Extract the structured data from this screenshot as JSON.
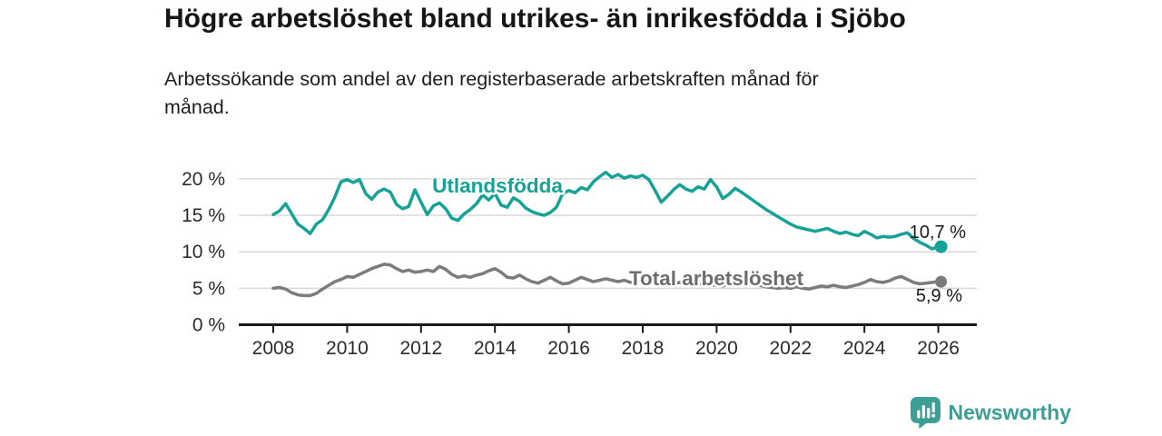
{
  "title": "Högre arbetslöshet bland utrikes- än inrikesfödda i Sjöbo",
  "subtitle": "Arbetssökande som andel av den registerbaserade arbetskraften månad för månad.",
  "chart_data": {
    "type": "line",
    "x_start_year": 2008,
    "x_step_months": 2,
    "x_end_year": 2026,
    "xticks": [
      2008,
      2010,
      2012,
      2014,
      2016,
      2018,
      2020,
      2022,
      2024,
      2026
    ],
    "yticks": [
      0,
      5,
      10,
      15,
      20
    ],
    "ytick_labels": [
      "0 %",
      "5 %",
      "10 %",
      "15 %",
      "20 %"
    ],
    "ylim": [
      0,
      22.5
    ],
    "grid": "horizontal",
    "legend": "inline-labels",
    "series": [
      {
        "name": "Utlandsfödda",
        "color": "#16a296",
        "end_label": "10,7 %",
        "end_value": 10.7,
        "values": [
          15.1,
          15.6,
          16.6,
          15.2,
          13.8,
          13.2,
          12.5,
          13.8,
          14.4,
          15.8,
          17.5,
          19.6,
          19.9,
          19.5,
          19.9,
          18.0,
          17.2,
          18.2,
          18.6,
          18.2,
          16.5,
          15.9,
          16.2,
          18.5,
          16.8,
          15.1,
          16.3,
          16.7,
          15.9,
          14.6,
          14.3,
          15.2,
          15.8,
          16.6,
          17.8,
          17.1,
          18.0,
          16.4,
          16.1,
          17.4,
          16.9,
          16.0,
          15.5,
          15.2,
          15.0,
          15.4,
          16.1,
          18.0,
          18.4,
          18.1,
          18.8,
          18.5,
          19.6,
          20.3,
          20.9,
          20.2,
          20.6,
          20.1,
          20.4,
          20.2,
          20.5,
          19.9,
          18.4,
          16.8,
          17.6,
          18.5,
          19.2,
          18.6,
          18.3,
          18.9,
          18.6,
          19.9,
          18.9,
          17.3,
          17.9,
          18.7,
          18.2,
          17.6,
          17.0,
          16.4,
          15.8,
          15.3,
          14.8,
          14.3,
          13.8,
          13.4,
          13.2,
          13.0,
          12.8,
          13.0,
          13.2,
          12.8,
          12.5,
          12.7,
          12.4,
          12.2,
          12.8,
          12.4,
          11.9,
          12.1,
          12.0,
          12.1,
          12.4,
          12.6,
          11.8,
          11.3,
          10.9,
          10.4,
          10.7
        ]
      },
      {
        "name": "Total arbetslöshet",
        "color": "#7c7c7c",
        "end_label": "5,9 %",
        "end_value": 5.9,
        "values": [
          5.0,
          5.1,
          4.9,
          4.4,
          4.1,
          4.0,
          4.0,
          4.3,
          4.9,
          5.4,
          5.9,
          6.2,
          6.6,
          6.5,
          6.9,
          7.3,
          7.7,
          8.0,
          8.3,
          8.2,
          7.7,
          7.3,
          7.5,
          7.2,
          7.3,
          7.5,
          7.3,
          8.0,
          7.6,
          6.9,
          6.5,
          6.7,
          6.5,
          6.8,
          7.0,
          7.4,
          7.7,
          7.2,
          6.5,
          6.4,
          6.8,
          6.3,
          5.9,
          5.7,
          6.1,
          6.5,
          6.0,
          5.6,
          5.7,
          6.1,
          6.5,
          6.2,
          5.9,
          6.1,
          6.3,
          6.1,
          5.9,
          6.1,
          5.8,
          6.0,
          6.1,
          5.9,
          5.6,
          5.5,
          5.7,
          5.6,
          5.8,
          5.6,
          5.4,
          5.6,
          5.4,
          5.5,
          5.4,
          5.3,
          5.6,
          5.9,
          5.7,
          5.5,
          5.6,
          5.4,
          5.2,
          5.1,
          5.0,
          5.1,
          5.0,
          5.2,
          5.0,
          4.9,
          5.1,
          5.3,
          5.2,
          5.4,
          5.2,
          5.1,
          5.3,
          5.5,
          5.8,
          6.2,
          5.9,
          5.8,
          6.0,
          6.4,
          6.6,
          6.2,
          5.8,
          5.6,
          5.7,
          5.8,
          5.9
        ]
      }
    ],
    "series_label_colors": {
      "Utlandsfödda": "#16a296",
      "Total arbetslöshet": "#6d6d6d"
    },
    "value_label_color": "#1a1a1a",
    "grid_color": "#d9d9d9",
    "axis_color": "#1a1a1a",
    "tick_label_color": "#2b2b2b"
  },
  "branding": {
    "logo_text": "Newsworthy",
    "logo_color": "#3d9e96",
    "logo_icon": "bar-chart-speech-bubble-icon"
  }
}
